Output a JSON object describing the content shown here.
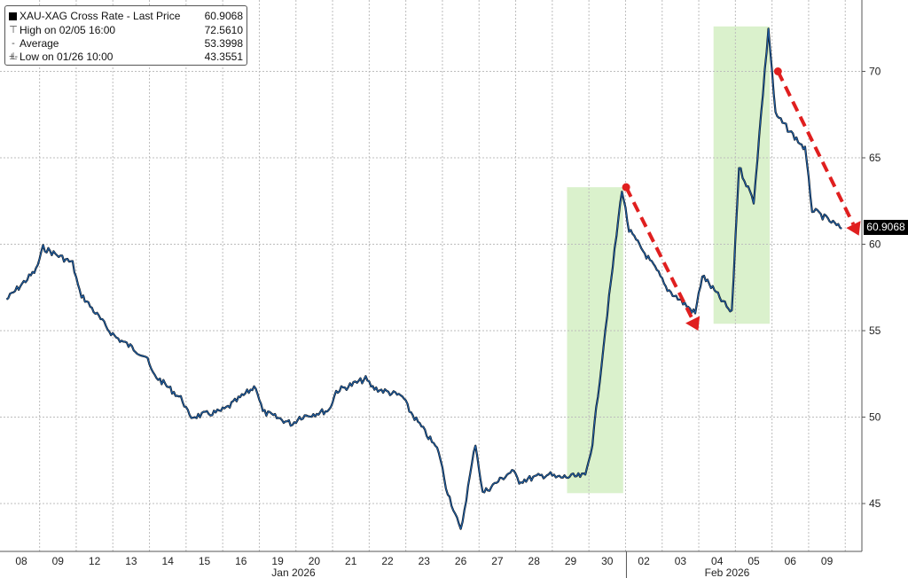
{
  "legend": {
    "title": "XAU-XAG Cross Rate - Last Price",
    "last": "60.9068",
    "rows": [
      {
        "label": "High on 02/05 16:00",
        "value": "72.5610",
        "icon": "high-marker-icon"
      },
      {
        "label": "Average",
        "value": "53.3998",
        "icon": "average-marker-icon"
      },
      {
        "label": "Low on 01/26 10:00",
        "value": "43.3551",
        "icon": "low-marker-icon"
      }
    ]
  },
  "last_price_tag": "60.9068",
  "colors": {
    "line": "#1f5fa6",
    "line_dark": "#0a0a0a",
    "highlight": "#d6efc6",
    "arrow": "#e01f1f",
    "grid": "#bdbdbd"
  },
  "chart_data": {
    "type": "line",
    "title": "XAU-XAG Cross Rate - Last Price",
    "xlabel": "",
    "ylabel": "",
    "ylim": [
      42,
      73
    ],
    "yticks": [
      45,
      50,
      55,
      60,
      65,
      70
    ],
    "grid": true,
    "legend_position": "top-left",
    "x_tick_labels": [
      "08",
      "09",
      "12",
      "13",
      "14",
      "15",
      "16",
      "19",
      "20",
      "21",
      "22",
      "23",
      "26",
      "27",
      "28",
      "29",
      "30",
      "02",
      "03",
      "04",
      "05",
      "06",
      "09"
    ],
    "months": [
      {
        "label": "Jan 2026"
      },
      {
        "label": "Feb 2026"
      }
    ],
    "series": [
      {
        "name": "XAU-XAG Cross Rate",
        "x": [
          "2026-01-08",
          "2026-01-08",
          "2026-01-09",
          "2026-01-09",
          "2026-01-12",
          "2026-01-12",
          "2026-01-13",
          "2026-01-13",
          "2026-01-14",
          "2026-01-14",
          "2026-01-15",
          "2026-01-15",
          "2026-01-16",
          "2026-01-16",
          "2026-01-19",
          "2026-01-19",
          "2026-01-20",
          "2026-01-20",
          "2026-01-21",
          "2026-01-21",
          "2026-01-22",
          "2026-01-22",
          "2026-01-23",
          "2026-01-23",
          "2026-01-26",
          "2026-01-26",
          "2026-01-26",
          "2026-01-27",
          "2026-01-27",
          "2026-01-28",
          "2026-01-28",
          "2026-01-29",
          "2026-01-29",
          "2026-01-30",
          "2026-01-30",
          "2026-01-30",
          "2026-02-02",
          "2026-02-02",
          "2026-02-03",
          "2026-02-03",
          "2026-02-04",
          "2026-02-04",
          "2026-02-05",
          "2026-02-05",
          "2026-02-05",
          "2026-02-06",
          "2026-02-06",
          "2026-02-09",
          "2026-02-09"
        ],
        "values": [
          56.8,
          58.5,
          59.8,
          58.9,
          57.2,
          55.0,
          54.6,
          53.5,
          52.5,
          51.0,
          50.0,
          50.3,
          50.5,
          51.8,
          50.3,
          49.6,
          50.0,
          50.4,
          51.5,
          52.2,
          51.7,
          51.2,
          50.4,
          48.0,
          46.0,
          43.4,
          48.5,
          45.6,
          46.9,
          46.3,
          46.7,
          46.5,
          46.6,
          48.5,
          56.0,
          63.2,
          60.8,
          58.3,
          57.5,
          56.0,
          58.2,
          56.0,
          64.5,
          62.5,
          72.5,
          67.5,
          65.5,
          62.0,
          60.9
        ]
      }
    ],
    "highlight_ranges": [
      {
        "from": "2026-01-29",
        "to": "2026-01-30",
        "y": [
          45.6,
          63.3
        ]
      },
      {
        "from": "2026-02-04",
        "to": "2026-02-05",
        "y": [
          55.4,
          72.6
        ]
      }
    ],
    "annotations": [
      {
        "type": "arrow",
        "from": {
          "x": "2026-02-02",
          "y": 63.3
        },
        "to": {
          "x": "2026-02-03",
          "y": 55.0
        }
      },
      {
        "type": "arrow",
        "from": {
          "x": "2026-02-06",
          "y": 70.0
        },
        "to": {
          "x": "2026-02-09",
          "y": 60.5
        }
      }
    ]
  }
}
